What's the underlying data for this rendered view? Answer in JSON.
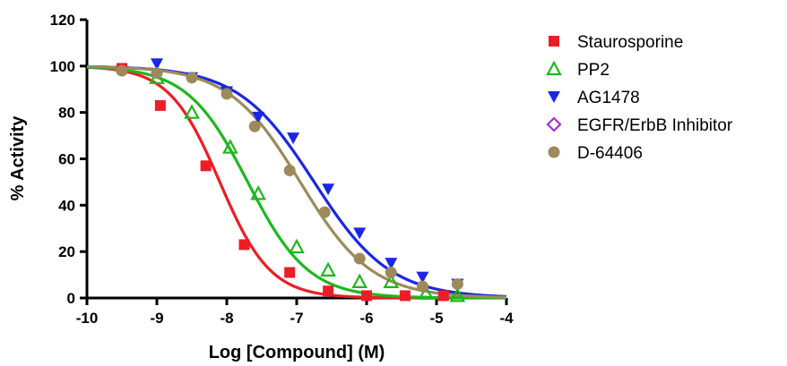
{
  "chart_data": {
    "type": "scatter",
    "xlabel": "Log [Compound] (M)",
    "ylabel": "% Activity",
    "xlim": [
      -10,
      -4
    ],
    "ylim": [
      0,
      120
    ],
    "xticks": [
      -10,
      -9,
      -8,
      -7,
      -6,
      -5,
      -4
    ],
    "yticks": [
      0,
      20,
      40,
      60,
      80,
      100,
      120
    ],
    "xtick_labels": [
      "-10",
      "-9",
      "-8",
      "-7",
      "-6",
      "-5",
      "-4"
    ],
    "ytick_labels": [
      "0",
      "20",
      "40",
      "60",
      "80",
      "100",
      "120"
    ],
    "grid": false,
    "legend_position": "right",
    "series": [
      {
        "name": "Staurosporine",
        "color": "#ee1c24",
        "marker": "square",
        "fit": {
          "logIC50": -8.1,
          "hill": 1.2,
          "top": 100,
          "bottom": 0
        },
        "x": [
          -9.5,
          -8.95,
          -8.3,
          -7.75,
          -7.1,
          -6.55,
          -6.0,
          -5.45,
          -4.9
        ],
        "y": [
          99,
          83,
          57,
          23,
          11,
          3,
          1,
          1,
          1
        ]
      },
      {
        "name": "PP2",
        "color": "#1cb81c",
        "marker": "triangle-up-open",
        "fit": {
          "logIC50": -7.7,
          "hill": 1.0,
          "top": 100,
          "bottom": 0
        },
        "x": [
          -9.0,
          -8.5,
          -7.95,
          -7.55,
          -7.0,
          -6.55,
          -6.1,
          -5.65,
          -5.15,
          -4.7
        ],
        "y": [
          95,
          80,
          65,
          45,
          22,
          12,
          7,
          7,
          2,
          1
        ]
      },
      {
        "name": "AG1478",
        "color": "#1a26e6",
        "marker": "triangle-down",
        "fit": {
          "logIC50": -6.75,
          "hill": 0.8,
          "top": 100,
          "bottom": 0
        },
        "x": [
          -9.0,
          -8.5,
          -8.0,
          -7.55,
          -7.05,
          -6.55,
          -6.1,
          -5.65,
          -5.2,
          -4.7
        ],
        "y": [
          101,
          95,
          89,
          78,
          69,
          47,
          28,
          15,
          9,
          6
        ]
      },
      {
        "name": "EGFR/ErbB Inhibitor",
        "color": "#a232d6",
        "marker": "diamond-open",
        "x": [],
        "y": []
      },
      {
        "name": "D-64406",
        "color": "#9c8a5a",
        "marker": "circle",
        "fit": {
          "logIC50": -6.95,
          "hill": 0.85,
          "top": 100,
          "bottom": 0
        },
        "x": [
          -9.5,
          -9.0,
          -8.5,
          -8.0,
          -7.6,
          -7.1,
          -6.6,
          -6.1,
          -5.65,
          -5.2,
          -4.7
        ],
        "y": [
          98,
          97,
          95,
          88,
          74,
          55,
          37,
          17,
          11,
          5,
          6
        ]
      }
    ]
  }
}
